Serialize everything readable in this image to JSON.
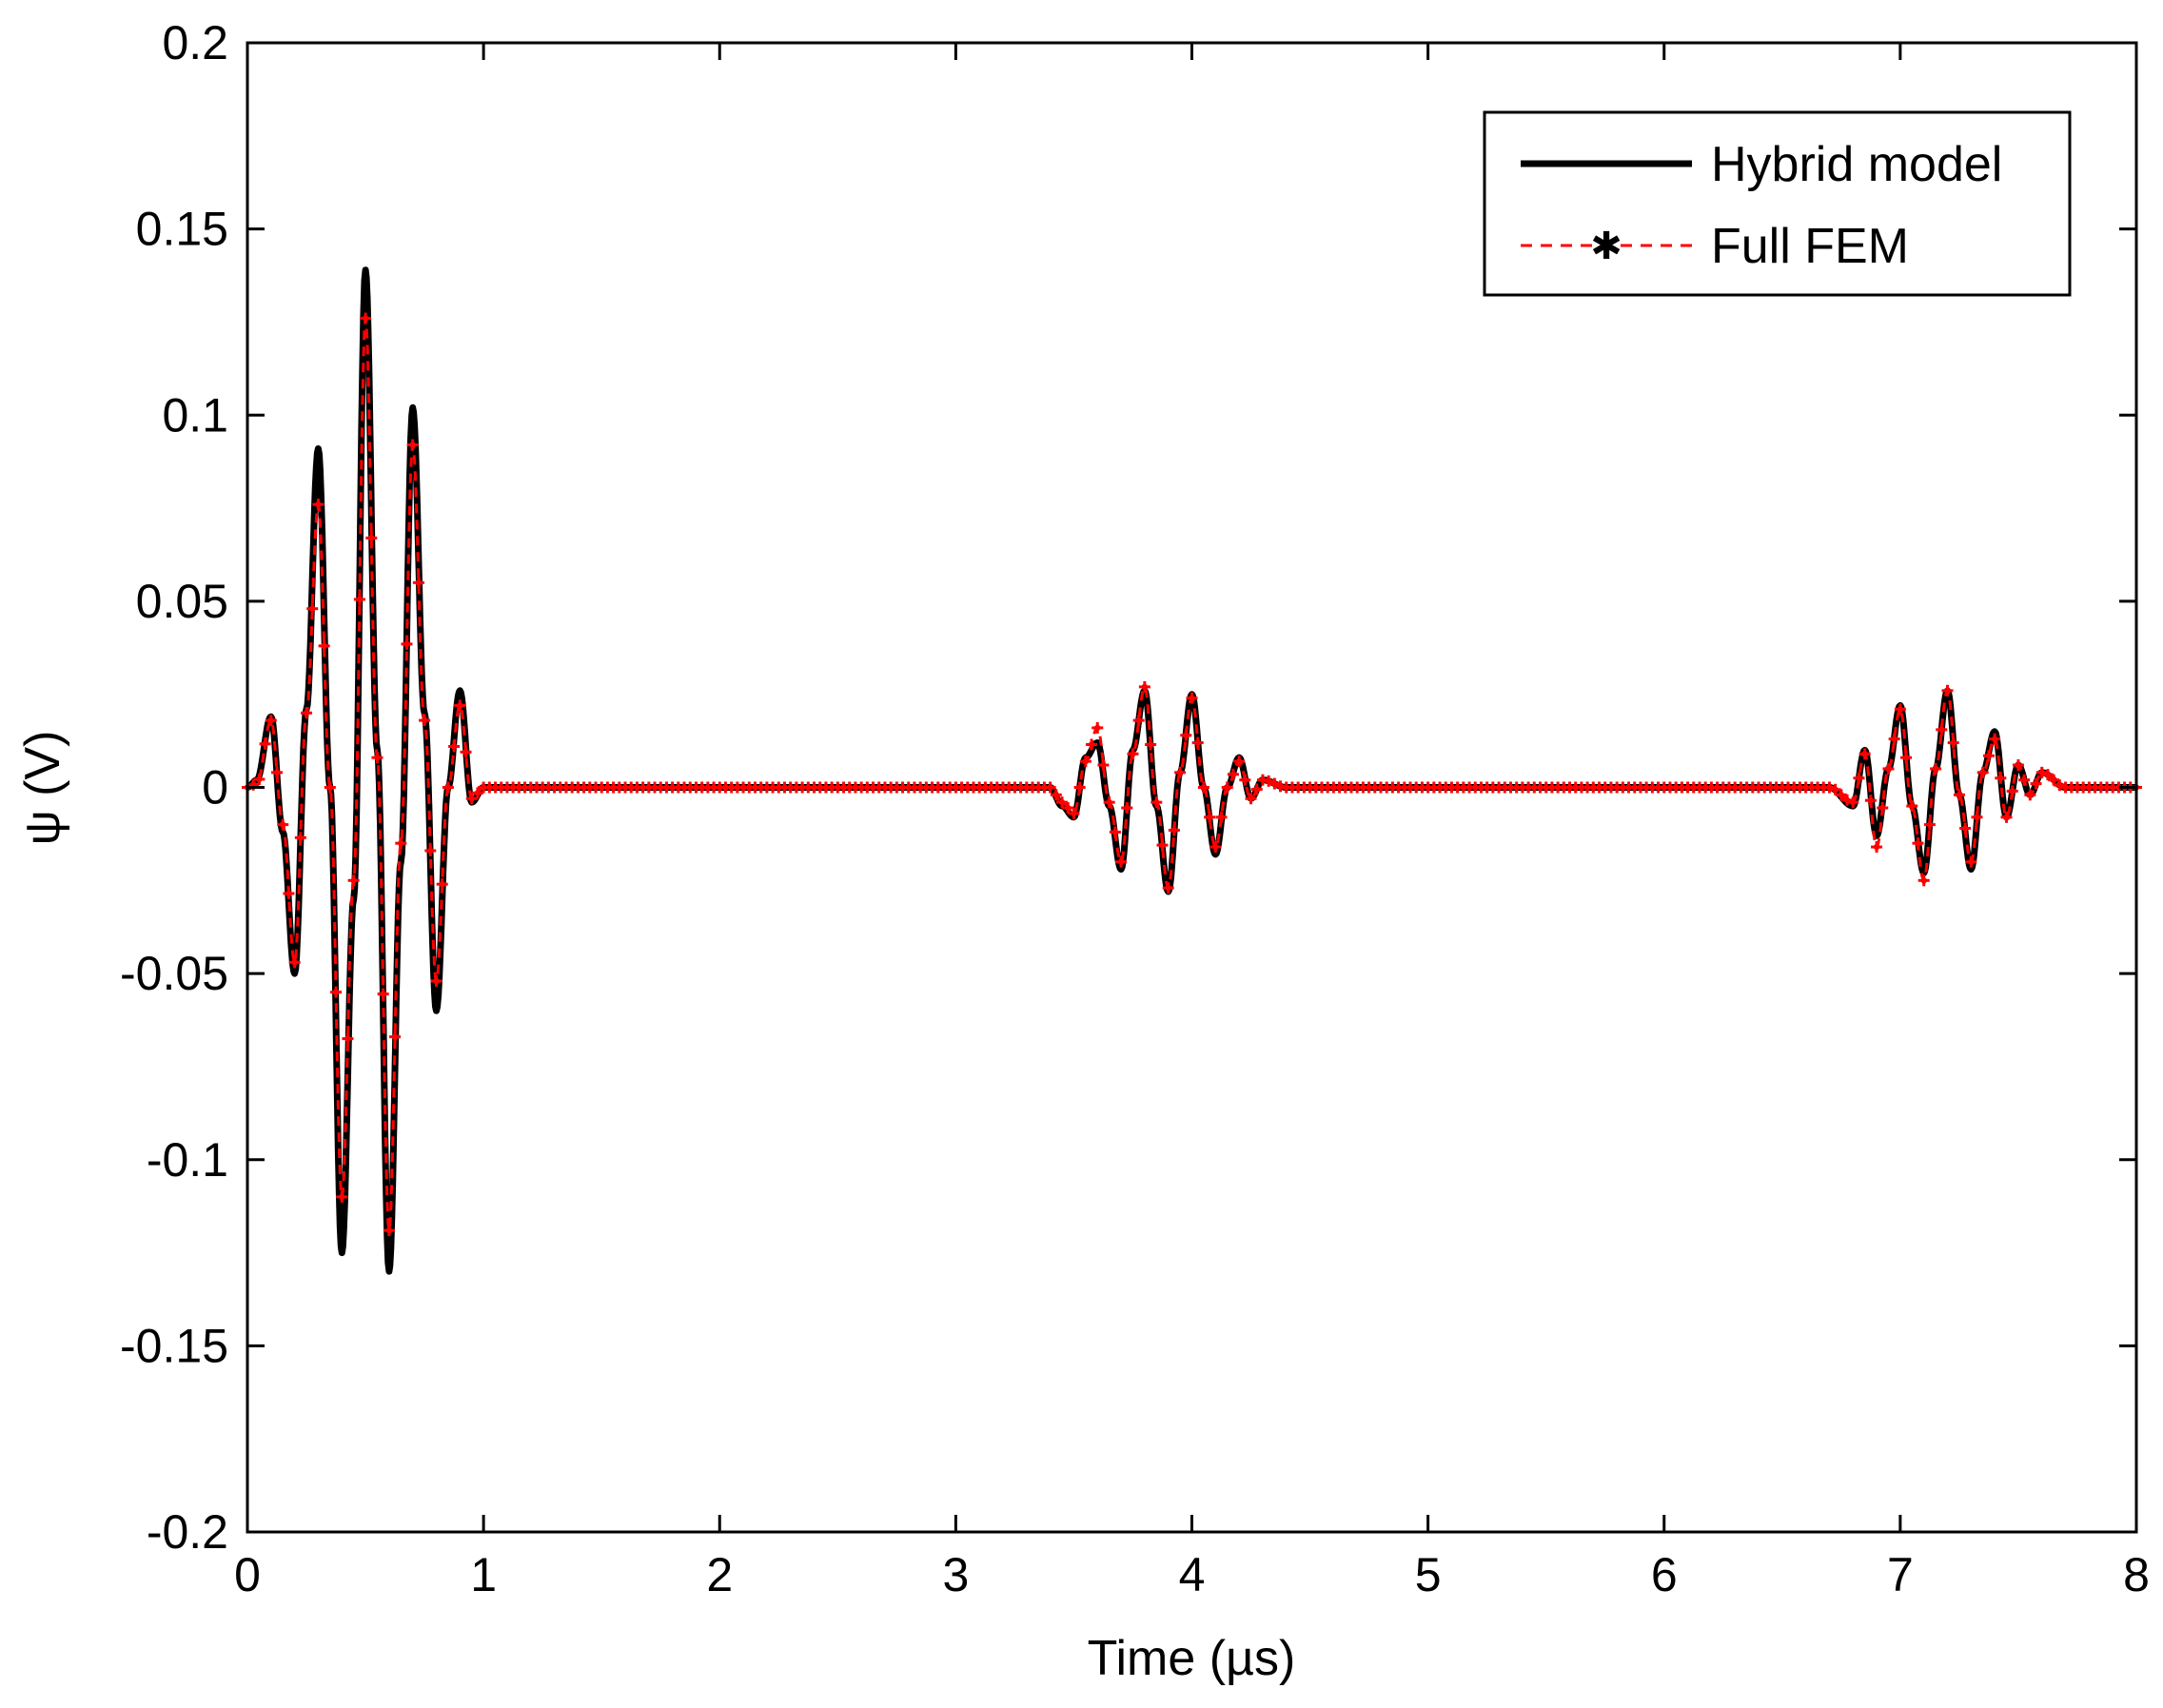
{
  "chart_data": {
    "type": "line",
    "xlabel": "Time (µs)",
    "ylabel": "ψ (V)",
    "xlim": [
      0,
      8
    ],
    "ylim": [
      -0.2,
      0.2
    ],
    "xticks": [
      0,
      1,
      2,
      3,
      4,
      5,
      6,
      7,
      8
    ],
    "xtick_labels": [
      "0",
      "1",
      "2",
      "3",
      "4",
      "5",
      "6",
      "7",
      "8"
    ],
    "yticks": [
      -0.2,
      -0.15,
      -0.1,
      -0.05,
      0,
      0.05,
      0.1,
      0.15,
      0.2
    ],
    "ytick_labels": [
      "-0.2",
      "-0.15",
      "-0.1",
      "-0.05",
      "0",
      "0.05",
      "0.1",
      "0.15",
      "0.2"
    ],
    "grid": false,
    "legend_position": "top-right",
    "series": [
      {
        "name": "Hybrid model",
        "color": "#000000",
        "style": "solid",
        "x": [
          0,
          0.04,
          0.1,
          0.15,
          0.2,
          0.25,
          0.3,
          0.35,
          0.4,
          0.45,
          0.5,
          0.55,
          0.6,
          0.65,
          0.7,
          0.75,
          0.8,
          0.85,
          0.9,
          0.95,
          1.0,
          1.5,
          2.0,
          2.5,
          3.0,
          3.4,
          3.45,
          3.5,
          3.55,
          3.6,
          3.65,
          3.7,
          3.75,
          3.8,
          3.85,
          3.9,
          3.95,
          4.0,
          4.05,
          4.1,
          4.15,
          4.2,
          4.25,
          4.3,
          4.4,
          5.0,
          6.0,
          6.7,
          6.8,
          6.85,
          6.9,
          6.95,
          7.0,
          7.05,
          7.1,
          7.15,
          7.2,
          7.25,
          7.3,
          7.35,
          7.4,
          7.45,
          7.5,
          7.55,
          7.6,
          7.7,
          8.0
        ],
        "values": [
          0,
          0.002,
          0.019,
          -0.012,
          -0.05,
          0.021,
          0.091,
          0.0,
          -0.125,
          -0.03,
          0.139,
          0.01,
          -0.13,
          -0.02,
          0.102,
          0.02,
          -0.06,
          0.0,
          0.026,
          -0.004,
          0,
          0,
          0,
          0,
          0,
          0,
          -0.005,
          -0.008,
          0.008,
          0.012,
          -0.005,
          -0.022,
          0.01,
          0.026,
          -0.005,
          -0.028,
          0.004,
          0.025,
          0.0,
          -0.018,
          0.0,
          0.008,
          -0.003,
          0.002,
          0,
          0,
          0,
          0,
          -0.005,
          0.01,
          -0.013,
          0.005,
          0.022,
          -0.005,
          -0.023,
          0.005,
          0.026,
          -0.002,
          -0.022,
          0.004,
          0.015,
          -0.008,
          0.006,
          -0.002,
          0.004,
          0,
          0
        ]
      },
      {
        "name": "Full FEM",
        "color": "#ff0000",
        "style": "dashed",
        "marker": "*",
        "x": [
          0,
          0.04,
          0.1,
          0.15,
          0.2,
          0.25,
          0.3,
          0.35,
          0.4,
          0.45,
          0.5,
          0.55,
          0.6,
          0.65,
          0.7,
          0.75,
          0.8,
          0.85,
          0.9,
          0.95,
          1.0,
          1.5,
          2.0,
          2.5,
          3.0,
          3.4,
          3.45,
          3.5,
          3.55,
          3.6,
          3.65,
          3.7,
          3.75,
          3.8,
          3.85,
          3.9,
          3.95,
          4.0,
          4.05,
          4.1,
          4.15,
          4.2,
          4.25,
          4.3,
          4.4,
          5.0,
          6.0,
          6.7,
          6.8,
          6.85,
          6.9,
          6.95,
          7.0,
          7.05,
          7.1,
          7.15,
          7.2,
          7.25,
          7.3,
          7.35,
          7.4,
          7.45,
          7.5,
          7.55,
          7.6,
          7.7,
          8.0
        ],
        "values": [
          0,
          0.001,
          0.018,
          -0.01,
          -0.047,
          0.02,
          0.076,
          0.0,
          -0.11,
          -0.025,
          0.126,
          0.008,
          -0.119,
          -0.015,
          0.092,
          0.018,
          -0.052,
          0.0,
          0.022,
          -0.003,
          0,
          0,
          0,
          0,
          0,
          0,
          -0.004,
          -0.007,
          0.007,
          0.016,
          -0.004,
          -0.02,
          0.009,
          0.027,
          -0.004,
          -0.027,
          0.004,
          0.024,
          0.0,
          -0.016,
          0.0,
          0.007,
          -0.003,
          0.002,
          0,
          0,
          0,
          0,
          -0.004,
          0.009,
          -0.016,
          0.005,
          0.021,
          -0.005,
          -0.025,
          0.005,
          0.026,
          -0.002,
          -0.02,
          0.004,
          0.013,
          -0.008,
          0.006,
          -0.002,
          0.004,
          0,
          0
        ]
      }
    ]
  }
}
